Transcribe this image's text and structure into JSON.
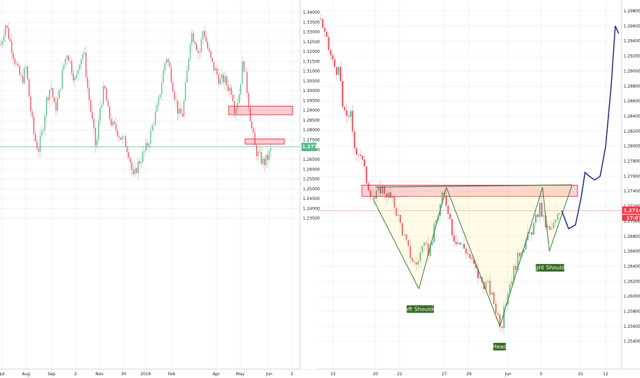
{
  "chart_data": [
    {
      "type": "candlestick",
      "symbol_panel": "left-daily",
      "x_tick_labels": [
        "Jul",
        "Aug",
        "Sep",
        "2",
        "Nov",
        "30",
        "2019",
        "Feb",
        "Apr",
        "May",
        "Jun",
        "2"
      ],
      "y_tick_labels": [
        "1.34000",
        "1.33500",
        "1.33000",
        "1.32500",
        "1.32000",
        "1.31500",
        "1.31000",
        "1.30500",
        "1.30000",
        "1.29500",
        "1.29000",
        "1.28500",
        "1.28000",
        "1.27500",
        "1.27000",
        "1.26500",
        "1.26000",
        "1.25500",
        "1.25000",
        "1.24500",
        "1.24000",
        "1.23500"
      ],
      "ylim": [
        1.232,
        1.342
      ],
      "last_price": "1.27142",
      "colors": {
        "up": "#53b987",
        "down": "#eb4d5c",
        "wick_up": "#b9e3cd",
        "wick_down": "#f5c1c6"
      },
      "close_path": [
        [
          0,
          1.322
        ],
        [
          8,
          1.334
        ],
        [
          14,
          1.326
        ],
        [
          20,
          1.318
        ],
        [
          26,
          1.31
        ],
        [
          32,
          1.305
        ],
        [
          38,
          1.312
        ],
        [
          44,
          1.292
        ],
        [
          50,
          1.276
        ],
        [
          56,
          1.27
        ],
        [
          62,
          1.28
        ],
        [
          68,
          1.296
        ],
        [
          74,
          1.303
        ],
        [
          80,
          1.29
        ],
        [
          86,
          1.298
        ],
        [
          92,
          1.312
        ],
        [
          98,
          1.32
        ],
        [
          104,
          1.312
        ],
        [
          110,
          1.304
        ],
        [
          116,
          1.316
        ],
        [
          122,
          1.32
        ],
        [
          128,
          1.3
        ],
        [
          134,
          1.285
        ],
        [
          140,
          1.27
        ],
        [
          146,
          1.292
        ],
        [
          152,
          1.302
        ],
        [
          158,
          1.288
        ],
        [
          164,
          1.282
        ],
        [
          170,
          1.28
        ],
        [
          176,
          1.276
        ],
        [
          182,
          1.274
        ],
        [
          188,
          1.268
        ],
        [
          194,
          1.255
        ],
        [
          200,
          1.262
        ],
        [
          206,
          1.266
        ],
        [
          212,
          1.27
        ],
        [
          218,
          1.276
        ],
        [
          224,
          1.285
        ],
        [
          230,
          1.292
        ],
        [
          236,
          1.306
        ],
        [
          242,
          1.318
        ],
        [
          248,
          1.31
        ],
        [
          254,
          1.298
        ],
        [
          260,
          1.288
        ],
        [
          266,
          1.288
        ],
        [
          272,
          1.308
        ],
        [
          278,
          1.33
        ],
        [
          284,
          1.326
        ],
        [
          290,
          1.318
        ],
        [
          296,
          1.332
        ],
        [
          302,
          1.322
        ],
        [
          308,
          1.314
        ],
        [
          314,
          1.31
        ],
        [
          320,
          1.305
        ],
        [
          326,
          1.306
        ],
        [
          332,
          1.302
        ],
        [
          338,
          1.3
        ],
        [
          342,
          1.29
        ],
        [
          348,
          1.298
        ],
        [
          354,
          1.316
        ],
        [
          360,
          1.3
        ],
        [
          366,
          1.282
        ],
        [
          372,
          1.27
        ],
        [
          378,
          1.266
        ],
        [
          384,
          1.263
        ],
        [
          390,
          1.266
        ],
        [
          396,
          1.271
        ]
      ]
    },
    {
      "type": "candlestick",
      "symbol_panel": "right-4h",
      "x_tick_labels": [
        "15",
        "20",
        "22",
        "27",
        "29",
        "Jun",
        "5",
        "10",
        "12"
      ],
      "y_tick_labels": [
        "1.29800",
        "1.29600",
        "1.29400",
        "1.29200",
        "1.29000",
        "1.28800",
        "1.28600",
        "1.28400",
        "1.28200",
        "1.28000",
        "1.27800",
        "1.27600",
        "1.27400",
        "1.27200",
        "1.27000",
        "1.26800",
        "1.26600",
        "1.26400",
        "1.26200",
        "1.26000",
        "1.25800",
        "1.25600",
        "1.25400"
      ],
      "ylim": [
        1.2532,
        1.2993
      ],
      "last_price": "1.27142",
      "countdown": "17:07",
      "annotations": [
        "Left Shoulder",
        "Head",
        "Right Shoulder"
      ],
      "pattern": "inverse head and shoulders",
      "close_path": [
        [
          467,
          1.297
        ],
        [
          475,
          1.294
        ],
        [
          485,
          1.291
        ],
        [
          495,
          1.2895
        ],
        [
          500,
          1.284
        ],
        [
          510,
          1.2845
        ],
        [
          515,
          1.28
        ],
        [
          525,
          1.279
        ],
        [
          535,
          1.275
        ],
        [
          545,
          1.273
        ],
        [
          555,
          1.2745
        ],
        [
          565,
          1.2735
        ],
        [
          575,
          1.272
        ],
        [
          585,
          1.269
        ],
        [
          595,
          1.266
        ],
        [
          605,
          1.264
        ],
        [
          615,
          1.2665
        ],
        [
          625,
          1.266
        ],
        [
          635,
          1.27
        ],
        [
          645,
          1.2735
        ],
        [
          652,
          1.272
        ],
        [
          660,
          1.268
        ],
        [
          670,
          1.267
        ],
        [
          680,
          1.266
        ],
        [
          690,
          1.264
        ],
        [
          700,
          1.262
        ],
        [
          710,
          1.2615
        ],
        [
          720,
          1.259
        ],
        [
          730,
          1.256
        ],
        [
          740,
          1.261
        ],
        [
          750,
          1.264
        ],
        [
          760,
          1.2665
        ],
        [
          770,
          1.268
        ],
        [
          778,
          1.2695
        ],
        [
          786,
          1.272
        ],
        [
          792,
          1.27
        ],
        [
          800,
          1.2685
        ],
        [
          810,
          1.27
        ],
        [
          816,
          1.2714
        ]
      ],
      "projection": [
        [
          818,
          1.2714
        ],
        [
          828,
          1.269
        ],
        [
          838,
          1.2695
        ],
        [
          846,
          1.273
        ],
        [
          852,
          1.2765
        ],
        [
          858,
          1.276
        ],
        [
          866,
          1.2755
        ],
        [
          874,
          1.276
        ],
        [
          882,
          1.28
        ],
        [
          890,
          1.288
        ],
        [
          896,
          1.296
        ],
        [
          901,
          1.295
        ]
      ]
    }
  ]
}
